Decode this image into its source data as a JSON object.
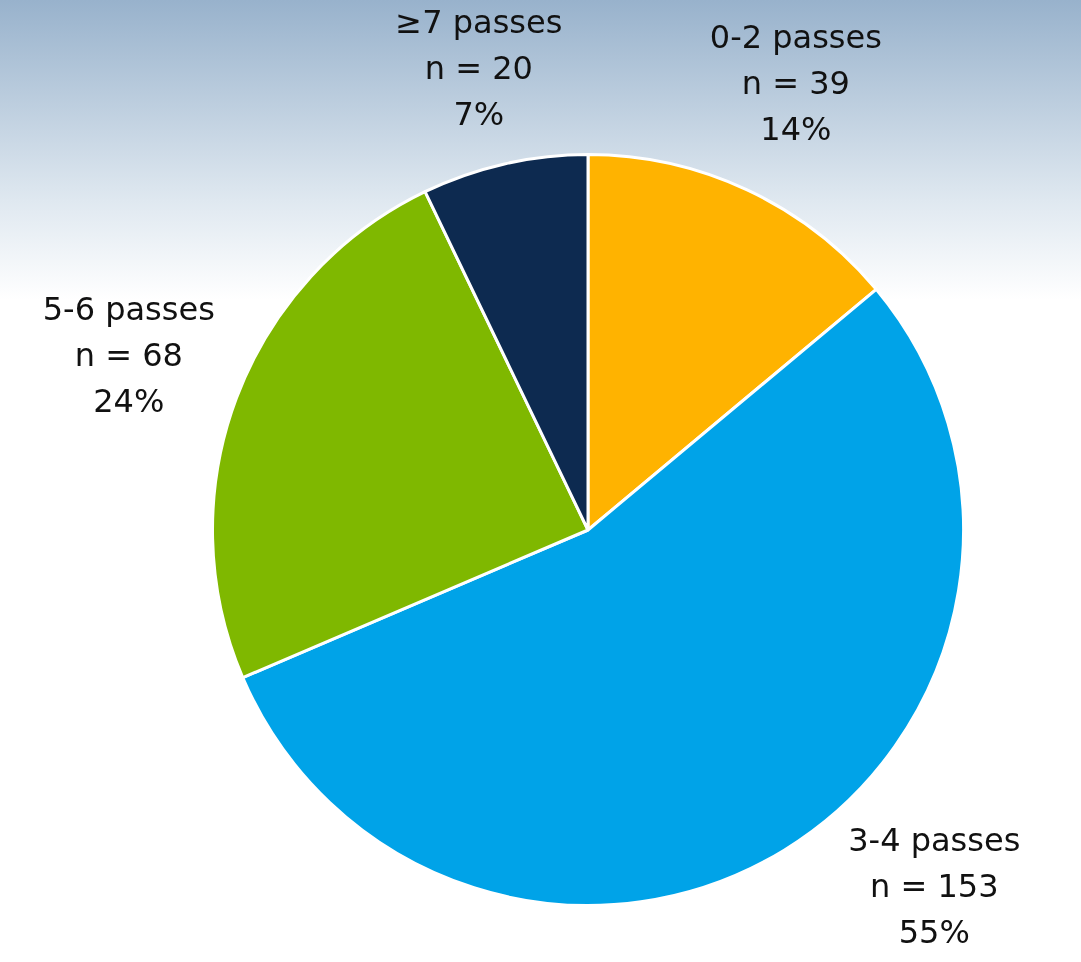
{
  "chart_data": {
    "type": "pie",
    "categories": [
      "0-2 passes",
      "3-4 passes",
      "5-6 passes",
      "≥7 passes"
    ],
    "values": [
      39,
      153,
      68,
      20
    ],
    "value_labels": [
      "n = 39\n14%",
      "n = 153\n55%",
      "n = 68\n24%",
      "n = 20\n7%"
    ],
    "colors": [
      "#ffb300",
      "#00a3e8",
      "#7fb800",
      "#0d2a50"
    ],
    "legend": false
  }
}
